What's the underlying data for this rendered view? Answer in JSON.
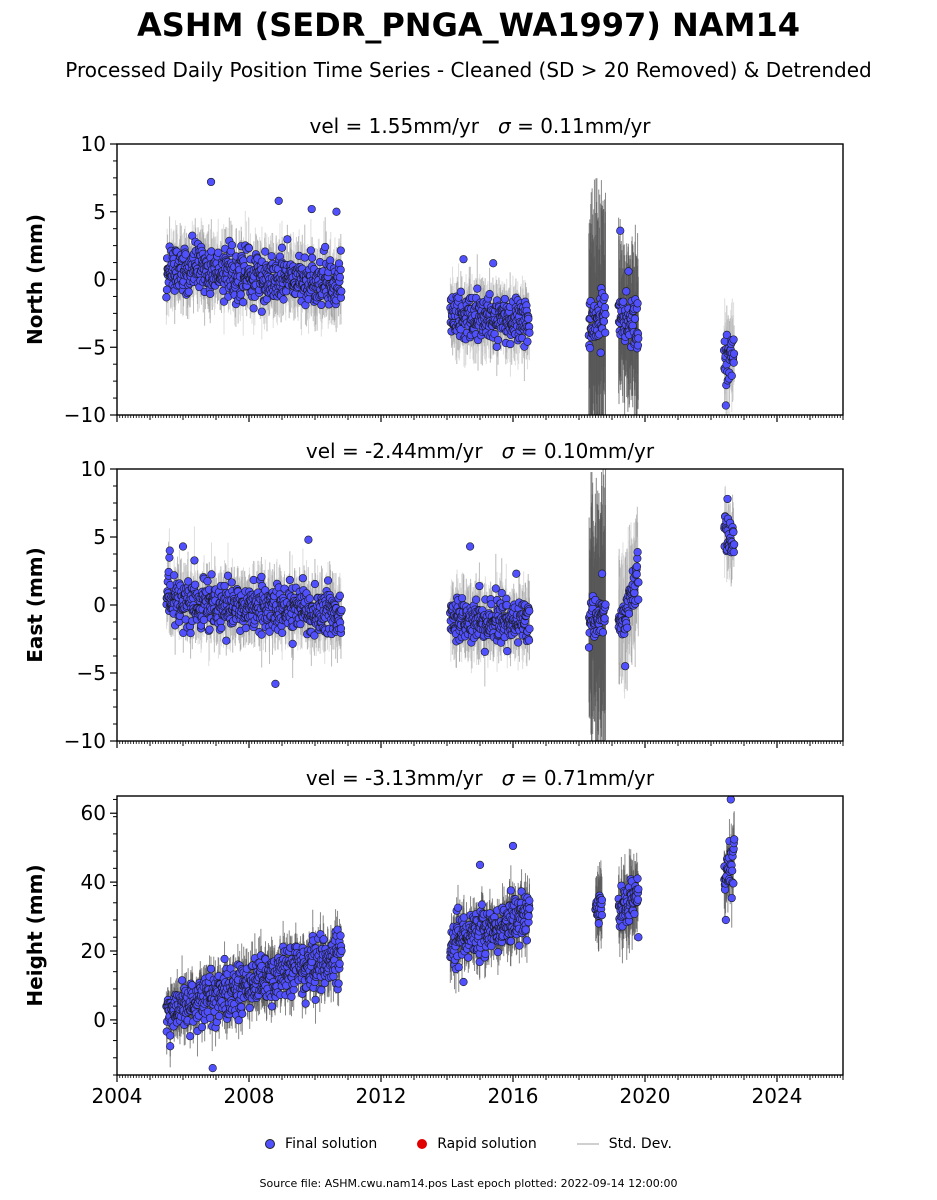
{
  "title": "ASHM (SEDR_PNGA_WA1997) NAM14",
  "subtitle": "Processed Daily Position Time Series - Cleaned (SD > 20 Removed) & Detrended",
  "legend": {
    "final": "Final solution",
    "rapid": "Rapid solution",
    "std": "Std. Dev."
  },
  "footer": "Source file: ASHM.cwu.nam14.pos  Last epoch plotted: 2022-09-14 12:00:00",
  "colors": {
    "final": "#5050ff",
    "rapid": "#e00000",
    "std": "#d0d0d0",
    "std_dark": "#555555"
  },
  "chart_data": [
    {
      "type": "scatter",
      "panel": "north",
      "title_prefix": "vel = 1.55mm/yr   ",
      "sigma_symbol": "σ",
      "title_suffix": " = 0.11mm/yr",
      "ylabel": "North (mm)",
      "xlim": [
        2004,
        2026
      ],
      "ylim": [
        -10,
        10
      ],
      "yticks": [
        -10,
        -5,
        0,
        5,
        10
      ],
      "segments": [
        {
          "x": [
            2005.5,
            2010.8
          ],
          "start": 1.0,
          "end": -0.4,
          "spread": 1.2,
          "err": 2.0
        },
        {
          "x": [
            2014.1,
            2016.5
          ],
          "start": -2.6,
          "end": -3.0,
          "spread": 1.2,
          "err": 2.0
        },
        {
          "x": [
            2018.3,
            2018.8
          ],
          "start": -3.8,
          "end": -2.5,
          "spread": 1.3,
          "err": 8.0
        },
        {
          "x": [
            2019.2,
            2019.8
          ],
          "start": -2.6,
          "end": -3.6,
          "spread": 1.3,
          "err": 5.0
        },
        {
          "x": [
            2022.4,
            2022.7
          ],
          "start": -6.5,
          "end": -5.5,
          "spread": 1.3,
          "err": 2.5
        }
      ],
      "outliers": [
        [
          2006.85,
          7.2
        ],
        [
          2008.9,
          5.8
        ],
        [
          2009.9,
          5.2
        ],
        [
          2010.65,
          5.0
        ],
        [
          2014.5,
          1.5
        ],
        [
          2015.4,
          1.2
        ],
        [
          2019.25,
          3.6
        ],
        [
          2019.5,
          0.6
        ],
        [
          2022.45,
          -9.3
        ]
      ]
    },
    {
      "type": "scatter",
      "panel": "east",
      "title_prefix": "vel = -2.44mm/yr   ",
      "sigma_symbol": "σ",
      "title_suffix": " = 0.10mm/yr",
      "ylabel": "East (mm)",
      "xlim": [
        2004,
        2026
      ],
      "ylim": [
        -10,
        10
      ],
      "yticks": [
        -10,
        -5,
        0,
        5,
        10
      ],
      "segments": [
        {
          "x": [
            2005.5,
            2010.8
          ],
          "start": 0.2,
          "end": -0.6,
          "spread": 1.2,
          "err": 2.0
        },
        {
          "x": [
            2014.1,
            2016.5
          ],
          "start": -1.0,
          "end": -1.3,
          "spread": 1.1,
          "err": 2.0
        },
        {
          "x": [
            2018.3,
            2018.8
          ],
          "start": -1.2,
          "end": -0.8,
          "spread": 1.2,
          "err": 8.0
        },
        {
          "x": [
            2019.2,
            2019.8
          ],
          "start": -1.8,
          "end": 2.5,
          "spread": 1.2,
          "err": 4.0
        },
        {
          "x": [
            2022.4,
            2022.7
          ],
          "start": 5.5,
          "end": 4.5,
          "spread": 1.0,
          "err": 2.0
        }
      ],
      "outliers": [
        [
          2005.6,
          4.0
        ],
        [
          2006.0,
          4.3
        ],
        [
          2009.8,
          4.8
        ],
        [
          2008.8,
          -5.8
        ],
        [
          2014.7,
          4.3
        ],
        [
          2016.1,
          2.3
        ],
        [
          2019.4,
          -4.5
        ],
        [
          2018.7,
          2.3
        ],
        [
          2022.5,
          7.8
        ]
      ]
    },
    {
      "type": "scatter",
      "panel": "height",
      "title_prefix": "vel = -3.13mm/yr   ",
      "sigma_symbol": "σ",
      "title_suffix": " = 0.71mm/yr",
      "ylabel": "Height (mm)",
      "xlim": [
        2004,
        2026
      ],
      "ylim": [
        -16,
        65
      ],
      "yticks": [
        0,
        20,
        40,
        60
      ],
      "segments": [
        {
          "x": [
            2005.5,
            2010.8
          ],
          "start": 2.0,
          "end": 19.0,
          "spread": 5.0,
          "err": 6.0
        },
        {
          "x": [
            2014.1,
            2016.5
          ],
          "start": 23.0,
          "end": 30.0,
          "spread": 5.0,
          "err": 6.0
        },
        {
          "x": [
            2018.5,
            2018.7
          ],
          "start": 33.0,
          "end": 33.0,
          "spread": 3.0,
          "err": 9.0
        },
        {
          "x": [
            2019.2,
            2019.8
          ],
          "start": 32.0,
          "end": 36.0,
          "spread": 4.0,
          "err": 9.0
        },
        {
          "x": [
            2022.4,
            2022.7
          ],
          "start": 41.0,
          "end": 47.0,
          "spread": 5.0,
          "err": 7.0
        }
      ],
      "outliers": [
        [
          2006.9,
          -14.0
        ],
        [
          2014.5,
          11.0
        ],
        [
          2016.0,
          50.5
        ],
        [
          2015.0,
          45.0
        ],
        [
          2022.6,
          64.0
        ],
        [
          2022.45,
          29.0
        ],
        [
          2019.8,
          24.0
        ],
        [
          2018.6,
          28.0
        ]
      ]
    }
  ],
  "xticks": [
    2004,
    2008,
    2012,
    2016,
    2020,
    2024
  ]
}
